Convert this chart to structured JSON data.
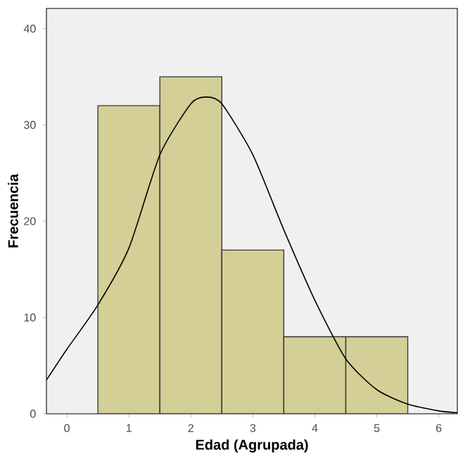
{
  "chart_data": {
    "type": "histogram",
    "xlabel": "Edad (Agrupada)",
    "ylabel": "Frecuencia",
    "bins": [
      0.5,
      1.5,
      2.5,
      3.5,
      4.5,
      5.5
    ],
    "values": [
      32,
      35,
      17,
      8,
      8
    ],
    "color": "#d3cf96",
    "series": [
      {
        "type": "line",
        "color": "#000000",
        "x": [
          -0.33,
          0,
          0.5,
          1,
          1.5,
          2,
          2.25,
          2.5,
          3,
          3.5,
          4,
          4.5,
          5,
          5.5,
          6,
          6.3
        ],
        "values": [
          3.5,
          6.7,
          11.3,
          17.2,
          26.9,
          32.2,
          32.9,
          32.2,
          26.9,
          19.1,
          11.8,
          5.7,
          2.5,
          1.0,
          0.3,
          0.1
        ]
      }
    ],
    "xlim": [
      -0.33,
      6.3
    ],
    "ylim": [
      0,
      42.1
    ],
    "xticks": [
      0,
      1,
      2,
      3,
      4,
      5,
      6
    ],
    "yticks": [
      0,
      10,
      20,
      30,
      40
    ]
  }
}
